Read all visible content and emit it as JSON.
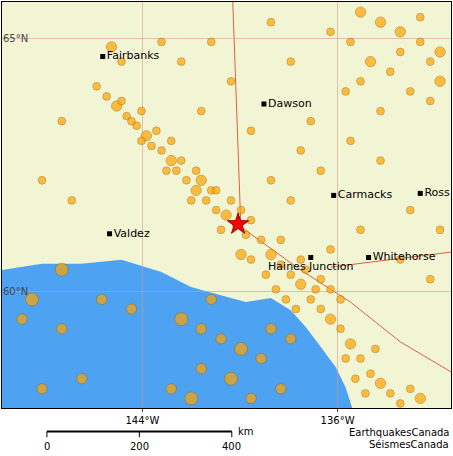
{
  "chart_data": {
    "type": "scatter",
    "xlim": [
      -149.76,
      -131.35
    ],
    "ylim": [
      57.69,
      65.73
    ],
    "xticks": [
      {
        "value": -144,
        "label": "144°W"
      },
      {
        "value": -136,
        "label": "136°W"
      }
    ],
    "yticks": [
      {
        "value": 65,
        "label": "65°N"
      },
      {
        "value": 60,
        "label": "60°N"
      }
    ],
    "grid": true,
    "color": "#ffa500",
    "marker": "circle",
    "x": [
      -145.88,
      -145.47,
      -145.06,
      -144.65,
      -144.24,
      -143.84,
      -143.63,
      -143.22,
      -142.82,
      -142.61,
      -142.2,
      -141.8,
      -141.39,
      -140.98,
      -140.57,
      -140.16,
      -139.76,
      -144.86,
      -144.45,
      -144.04,
      -143.43,
      -143.02,
      -142.41,
      -142.0,
      -141.59,
      -141.18,
      -140.78,
      -140.37,
      -139.55,
      -139.14,
      -138.73,
      -138.33,
      -137.92,
      -137.51,
      -137.1,
      -136.69,
      -136.29,
      -138.53,
      -138.12,
      -137.71,
      -138.94,
      -139.55,
      -137.31,
      -139.96,
      -136.9,
      -135.88,
      -135.47,
      -135.06,
      -134.65,
      -134.24,
      -133.84,
      -133.43,
      -135.27,
      -134.86,
      -133.02,
      -132.61,
      -135.67,
      -134.45,
      -142.41,
      -141.59,
      -140.78,
      -139.96,
      -139.14,
      -141.59,
      -140.37,
      -142.82,
      -139.55,
      -138.33,
      -137.92,
      -141.18,
      -142.0,
      -138.73,
      -135.06,
      -134.24,
      -133.43,
      -132.61,
      -131.8,
      -135.47,
      -134.65,
      -133.84,
      -133.02,
      -132.2,
      -135.67,
      -132.61,
      -131.8,
      -136.29,
      -134.24,
      -137.51,
      -136.69,
      -135.47,
      -134.24,
      -133.02,
      -131.8,
      -135.06,
      -136.29,
      -133.43,
      -132.2,
      -137.92,
      -138.73,
      -139.55,
      -137.1,
      -141.59,
      -140.37,
      -142.41,
      -143.22,
      -141.18,
      -137.92,
      -138.73,
      -145.27,
      -144.86,
      -147.31,
      -148.12,
      -146.9,
      -148.53,
      -148.94,
      -147.31,
      -145.67,
      -144.45,
      -148.12,
      -146.49,
      -147.31,
      -144.04,
      -142.82,
      -141.8,
      -140.98,
      -139.96,
      -138.33,
      -137.51,
      -136.69,
      -135.88,
      -136.29,
      -133.43,
      -135.06,
      -132.2
    ],
    "y": [
      64.06,
      63.86,
      63.67,
      63.47,
      63.28,
      63.08,
      62.88,
      62.79,
      62.59,
      62.39,
      62.2,
      62.0,
      61.8,
      61.61,
      61.51,
      61.32,
      61.12,
      63.77,
      63.37,
      62.98,
      63.18,
      62.39,
      62.59,
      61.8,
      62.2,
      62.0,
      61.22,
      61.8,
      61.41,
      61.02,
      60.73,
      60.53,
      60.33,
      60.14,
      59.84,
      59.65,
      59.45,
      60.04,
      59.84,
      59.65,
      60.33,
      60.63,
      60.43,
      60.73,
      60.04,
      59.26,
      58.96,
      58.67,
      58.37,
      58.18,
      57.98,
      57.78,
      58.27,
      57.98,
      58.07,
      57.88,
      58.67,
      58.86,
      59.45,
      59.26,
      59.06,
      58.86,
      58.67,
      58.47,
      58.27,
      58.07,
      57.88,
      58.07,
      59.06,
      59.84,
      57.88,
      59.26,
      65.53,
      65.33,
      65.14,
      64.94,
      64.74,
      64.94,
      64.55,
      64.35,
      63.96,
      63.77,
      63.96,
      65.43,
      64.16,
      65.14,
      63.57,
      62.79,
      62.39,
      62.98,
      62.59,
      61.61,
      61.22,
      61.22,
      60.83,
      60.63,
      60.24,
      61.8,
      62.2,
      63.18,
      63.37,
      63.57,
      64.16,
      64.55,
      64.94,
      64.94,
      64.55,
      65.33,
      64.84,
      64.55,
      63.37,
      62.2,
      61.8,
      59.84,
      59.45,
      59.26,
      59.84,
      59.65,
      58.07,
      58.27,
      60.43,
      63.57,
      62.98,
      62.39,
      62.0,
      61.61,
      61.02,
      60.63,
      60.24,
      59.84,
      60.04,
      64.74,
      64.16,
      64.55
    ],
    "size": [
      3,
      3,
      4,
      3,
      3,
      4,
      3,
      3,
      4,
      3,
      3,
      4,
      3,
      3,
      4,
      3,
      3,
      3,
      3,
      3,
      3,
      3,
      3,
      3,
      4,
      3,
      3,
      3,
      3,
      3,
      4,
      3,
      3,
      4,
      3,
      3,
      4,
      3,
      3,
      3,
      3,
      3,
      3,
      4,
      3,
      3,
      4,
      3,
      3,
      4,
      3,
      3,
      3,
      3,
      3,
      4,
      3,
      3,
      5,
      4,
      4,
      5,
      4,
      4,
      5,
      4,
      4,
      4,
      4,
      4,
      5,
      4,
      4,
      4,
      4,
      3,
      4,
      3,
      4,
      3,
      3,
      3,
      3,
      3,
      4,
      3,
      3,
      3,
      3,
      3,
      3,
      3,
      3,
      3,
      3,
      3,
      3,
      3,
      3,
      3,
      3,
      3,
      3,
      3,
      3,
      3,
      3,
      3,
      4,
      3,
      3,
      3,
      3,
      5,
      4,
      4,
      4,
      4,
      4,
      4,
      5,
      3,
      3,
      3,
      3,
      3,
      3,
      3,
      3,
      3,
      3,
      3,
      3,
      3
    ],
    "places": [
      {
        "label": "Fairbanks",
        "x": -145.63,
        "y": 64.65
      },
      {
        "label": "Dawson",
        "x": -139.02,
        "y": 63.71
      },
      {
        "label": "Carmacks",
        "x": -136.16,
        "y": 61.9
      },
      {
        "label": "Ross",
        "x": -132.61,
        "y": 61.94
      },
      {
        "label": "Valdez",
        "x": -145.35,
        "y": 61.14
      },
      {
        "label": "Haines Junction",
        "x": -137.1,
        "y": 60.67
      },
      {
        "label": "Whitehorse",
        "x": -134.73,
        "y": 60.67
      }
    ],
    "epicenter": {
      "x": -140.08,
      "y": 61.33,
      "color": "#ff0000",
      "marker": "star"
    },
    "scale_bar": {
      "ticks": [
        0,
        200,
        400
      ],
      "unit": "km"
    },
    "credits": [
      "EarthquakesCanada",
      "SéismesCanada"
    ]
  }
}
